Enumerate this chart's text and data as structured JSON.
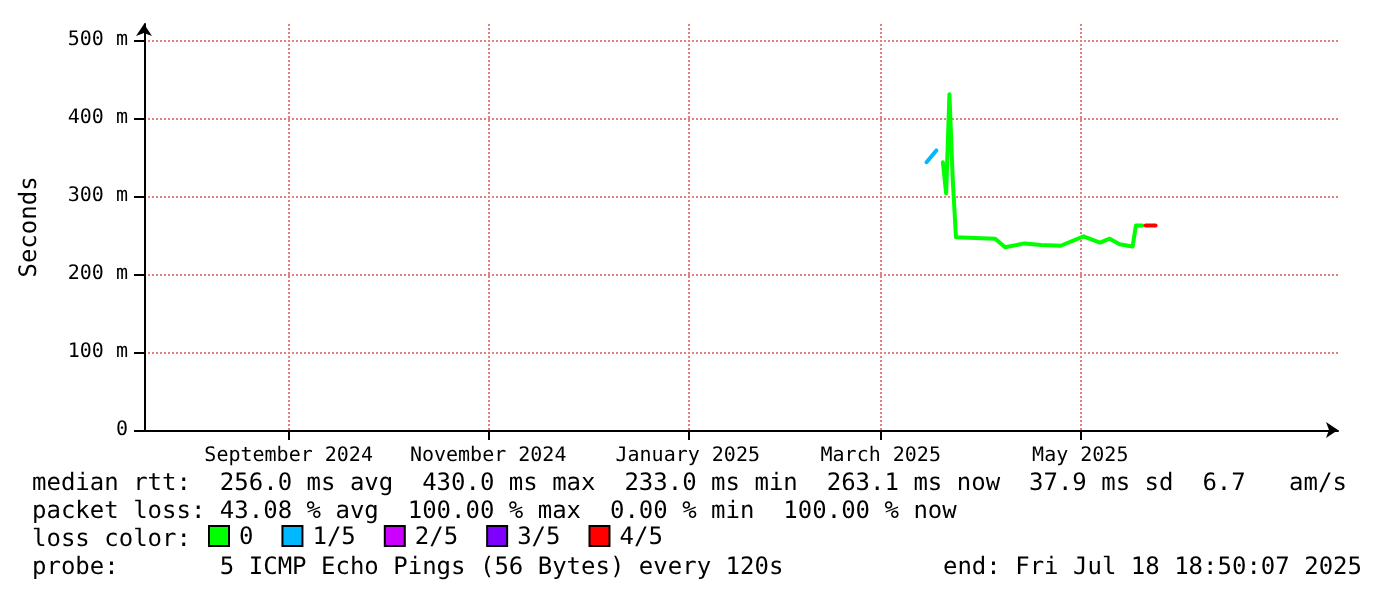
{
  "chart_data": {
    "type": "line",
    "ylabel": "Seconds",
    "legend_title": "loss color:",
    "legend": "bottom left",
    "xlim": [
      "2024-07-18T18:50",
      "2025-07-18T18:50"
    ],
    "xticks": [
      {
        "value": "2024-09-01",
        "label": "September 2024"
      },
      {
        "value": "2024-11-01",
        "label": "November 2024"
      },
      {
        "value": "2025-01-01",
        "label": "January 2025"
      },
      {
        "value": "2025-03-01",
        "label": "March 2025"
      },
      {
        "value": "2025-05-01",
        "label": "May 2025"
      }
    ],
    "ylim": [
      0,
      520
    ],
    "yticks": [
      {
        "value": 0,
        "label": "0"
      },
      {
        "value": 100,
        "label": "100 m"
      },
      {
        "value": 200,
        "label": "200 m"
      },
      {
        "value": 300,
        "label": "300 m"
      },
      {
        "value": 400,
        "label": "400 m"
      },
      {
        "value": 500,
        "label": "500 m"
      }
    ],
    "grid": true,
    "marker": "none",
    "line_style": "solid",
    "series": [
      {
        "name": "0",
        "color": "#00ff00",
        "x": [
          "2025-03-20",
          "2025-03-21",
          "2025-03-22",
          "2025-03-23",
          "2025-03-24",
          "2025-04-05",
          "2025-04-08",
          "2025-04-14",
          "2025-04-19",
          "2025-04-25",
          "2025-05-02",
          "2025-05-07",
          "2025-05-10",
          "2025-05-13",
          "2025-05-17",
          "2025-05-18",
          "2025-05-20"
        ],
        "values": [
          343,
          303,
          430,
          322,
          247,
          245,
          234,
          239,
          237,
          236,
          248,
          240,
          245,
          238,
          235,
          262,
          262
        ]
      },
      {
        "name": "1/5",
        "color": "#00b8ff",
        "x": [
          "2025-03-15",
          "2025-03-18"
        ],
        "values": [
          343,
          358
        ]
      },
      {
        "name": "2/5",
        "color": "#cc00ff"
      },
      {
        "name": "3/5",
        "color": "#7e00ff"
      },
      {
        "name": "4/5",
        "color": "#ff0000",
        "x": [
          "2025-05-21",
          "2025-05-24"
        ],
        "values": [
          262,
          262
        ]
      }
    ],
    "annotations": [
      "median rtt:  256.0 ms avg  430.0 ms max  233.0 ms min  263.1 ms now  37.9 ms sd  6.7   am/s",
      "packet loss: 43.08 % avg  100.00 % max  0.00 % min  100.00 % now",
      "probe:       5 ICMP Echo Pings (56 Bytes) every 120s",
      "end: Fri Jul 18 18:50:07 2025"
    ]
  }
}
